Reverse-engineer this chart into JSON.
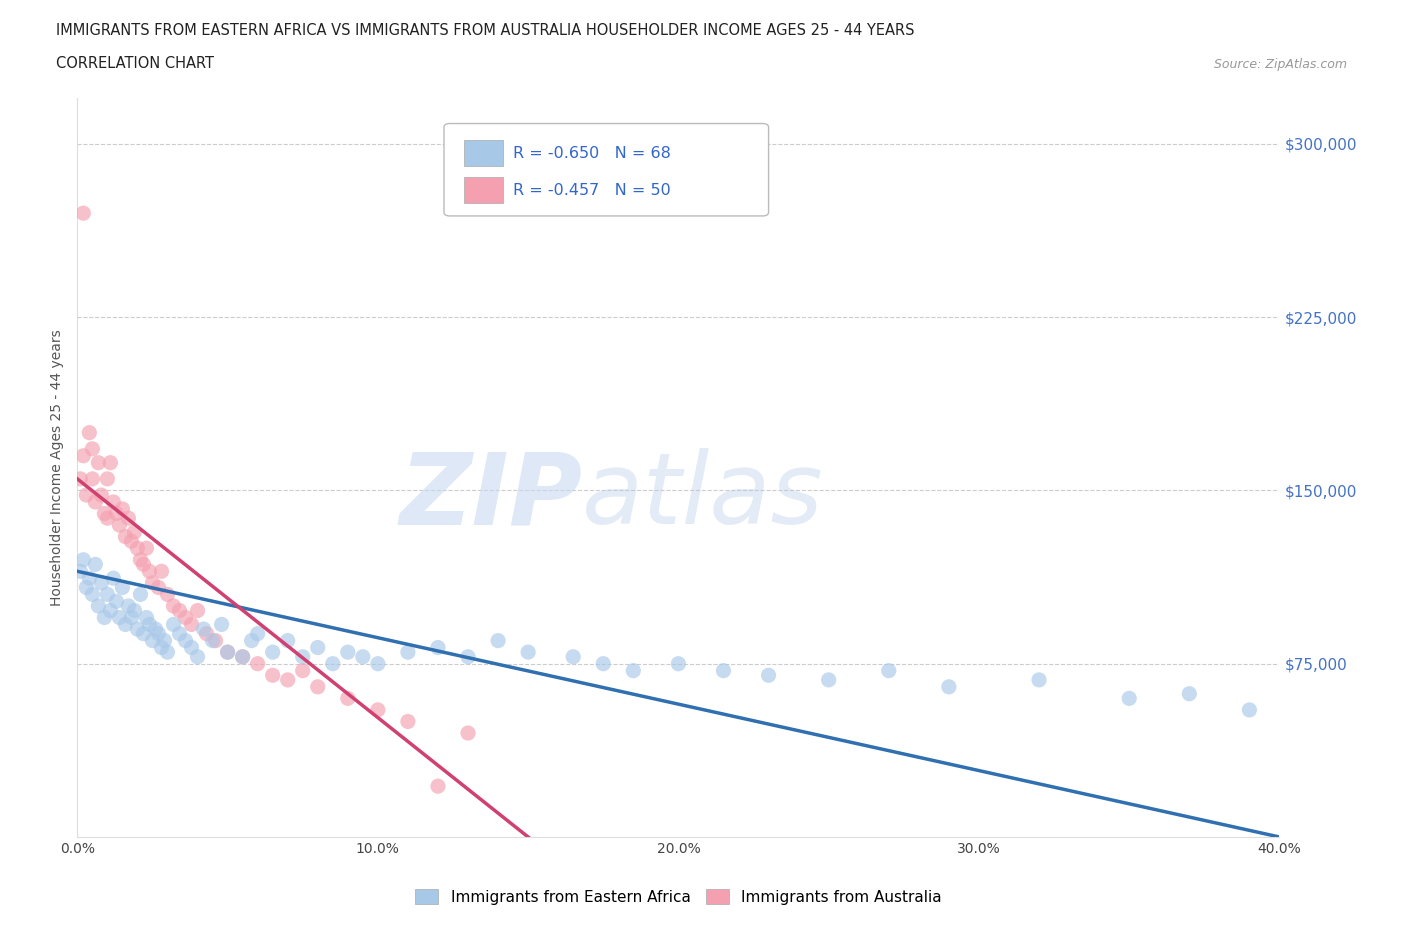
{
  "title_line1": "IMMIGRANTS FROM EASTERN AFRICA VS IMMIGRANTS FROM AUSTRALIA HOUSEHOLDER INCOME AGES 25 - 44 YEARS",
  "title_line2": "CORRELATION CHART",
  "source_text": "Source: ZipAtlas.com",
  "ylabel": "Householder Income Ages 25 - 44 years",
  "legend_label1": "Immigrants from Eastern Africa",
  "legend_label2": "Immigrants from Australia",
  "R1": -0.65,
  "N1": 68,
  "R2": -0.457,
  "N2": 50,
  "color1": "#a8c8e8",
  "color2": "#f4a0b0",
  "color1_line": "#3070b0",
  "color2_line": "#d04070",
  "bg_color": "#ffffff",
  "watermark_zip": "ZIP",
  "watermark_atlas": "atlas",
  "xlim": [
    0.0,
    0.4
  ],
  "ylim": [
    0,
    320000
  ],
  "yticks": [
    75000,
    150000,
    225000,
    300000
  ],
  "ytick_labels": [
    "$75,000",
    "$150,000",
    "$225,000",
    "$300,000"
  ],
  "xtick_labels": [
    "0.0%",
    "10.0%",
    "20.0%",
    "30.0%",
    "40.0%"
  ],
  "xticks": [
    0.0,
    0.1,
    0.2,
    0.3,
    0.4
  ],
  "grid_color": "#cccccc",
  "blue_scatter_x": [
    0.001,
    0.002,
    0.003,
    0.004,
    0.005,
    0.006,
    0.007,
    0.008,
    0.009,
    0.01,
    0.011,
    0.012,
    0.013,
    0.014,
    0.015,
    0.016,
    0.017,
    0.018,
    0.019,
    0.02,
    0.021,
    0.022,
    0.023,
    0.024,
    0.025,
    0.026,
    0.027,
    0.028,
    0.029,
    0.03,
    0.032,
    0.034,
    0.036,
    0.038,
    0.04,
    0.042,
    0.045,
    0.048,
    0.05,
    0.055,
    0.058,
    0.06,
    0.065,
    0.07,
    0.075,
    0.08,
    0.085,
    0.09,
    0.095,
    0.1,
    0.11,
    0.12,
    0.13,
    0.14,
    0.15,
    0.165,
    0.175,
    0.185,
    0.2,
    0.215,
    0.23,
    0.25,
    0.27,
    0.29,
    0.32,
    0.35,
    0.37,
    0.39
  ],
  "blue_scatter_y": [
    115000,
    120000,
    108000,
    112000,
    105000,
    118000,
    100000,
    110000,
    95000,
    105000,
    98000,
    112000,
    102000,
    95000,
    108000,
    92000,
    100000,
    95000,
    98000,
    90000,
    105000,
    88000,
    95000,
    92000,
    85000,
    90000,
    88000,
    82000,
    85000,
    80000,
    92000,
    88000,
    85000,
    82000,
    78000,
    90000,
    85000,
    92000,
    80000,
    78000,
    85000,
    88000,
    80000,
    85000,
    78000,
    82000,
    75000,
    80000,
    78000,
    75000,
    80000,
    82000,
    78000,
    85000,
    80000,
    78000,
    75000,
    72000,
    75000,
    72000,
    70000,
    68000,
    72000,
    65000,
    68000,
    60000,
    62000,
    55000
  ],
  "pink_scatter_x": [
    0.001,
    0.002,
    0.003,
    0.004,
    0.005,
    0.005,
    0.006,
    0.007,
    0.008,
    0.009,
    0.01,
    0.01,
    0.011,
    0.012,
    0.013,
    0.014,
    0.015,
    0.016,
    0.017,
    0.018,
    0.019,
    0.02,
    0.021,
    0.022,
    0.023,
    0.024,
    0.025,
    0.027,
    0.028,
    0.03,
    0.032,
    0.034,
    0.036,
    0.038,
    0.04,
    0.043,
    0.046,
    0.05,
    0.055,
    0.06,
    0.065,
    0.07,
    0.075,
    0.08,
    0.09,
    0.1,
    0.11,
    0.12,
    0.13,
    0.002
  ],
  "pink_scatter_y": [
    155000,
    165000,
    148000,
    175000,
    155000,
    168000,
    145000,
    162000,
    148000,
    140000,
    155000,
    138000,
    162000,
    145000,
    140000,
    135000,
    142000,
    130000,
    138000,
    128000,
    132000,
    125000,
    120000,
    118000,
    125000,
    115000,
    110000,
    108000,
    115000,
    105000,
    100000,
    98000,
    95000,
    92000,
    98000,
    88000,
    85000,
    80000,
    78000,
    75000,
    70000,
    68000,
    72000,
    65000,
    60000,
    55000,
    50000,
    22000,
    45000,
    270000
  ],
  "blue_line_x0": 0.0,
  "blue_line_y0": 115000,
  "blue_line_x1": 0.4,
  "blue_line_y1": 0,
  "pink_line_x0": 0.0,
  "pink_line_y0": 155000,
  "pink_line_x1": 0.15,
  "pink_line_y1": 0
}
